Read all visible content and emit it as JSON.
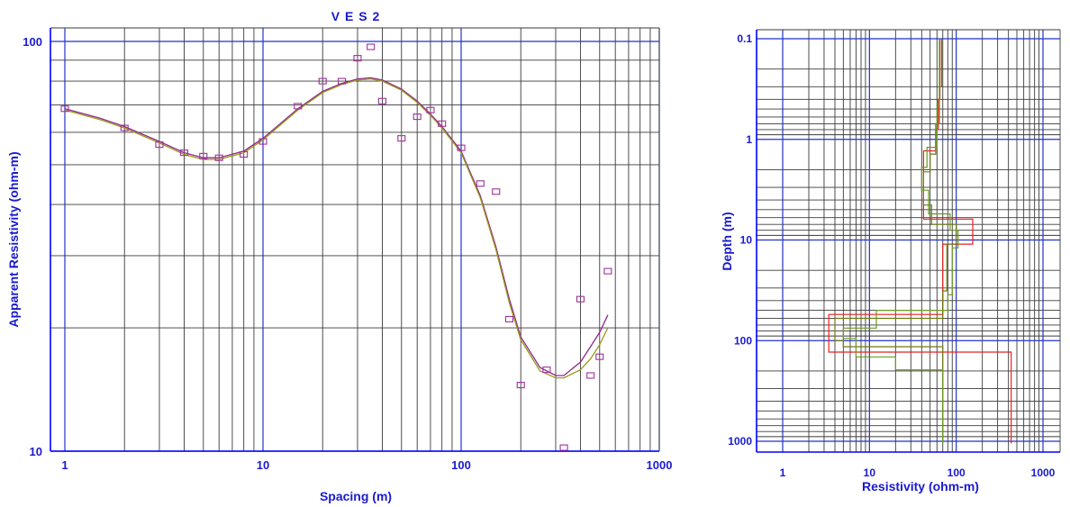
{
  "colors": {
    "frame": "#0000ff",
    "grid_decade": "#2233cc",
    "grid_minor": "#3a3a3a",
    "text": "#1a1ad0",
    "marker": "#a0309a",
    "curve_a": "#8e2a8a",
    "curve_b": "#9a9a1a",
    "model_red": "#e82020",
    "model_olive": "#6e7a10",
    "model_green": "#6a9a20"
  },
  "chart_data": [
    {
      "type": "scatter",
      "title": "V E S  2",
      "xlabel": "Spacing  (m)",
      "ylabel": "Apparent Resistivity  (ohm-m)",
      "xscale": "log",
      "yscale": "log",
      "xlim": [
        1,
        1000
      ],
      "ylim": [
        10,
        100
      ],
      "grid": true,
      "x_ticks": [
        {
          "value": 1,
          "label": "1"
        },
        {
          "value": 10,
          "label": "10"
        },
        {
          "value": 100,
          "label": "100"
        },
        {
          "value": 1000,
          "label": "1000"
        }
      ],
      "y_ticks": [
        {
          "value": 10,
          "label": "10"
        },
        {
          "value": 100,
          "label": "100"
        }
      ],
      "observed": [
        {
          "x": 1,
          "y": 68.5
        },
        {
          "x": 2,
          "y": 61.5
        },
        {
          "x": 3,
          "y": 56.0
        },
        {
          "x": 4,
          "y": 53.5
        },
        {
          "x": 5,
          "y": 52.5
        },
        {
          "x": 6,
          "y": 52.0
        },
        {
          "x": 8,
          "y": 53.0
        },
        {
          "x": 10,
          "y": 57.0
        },
        {
          "x": 15,
          "y": 69.5
        },
        {
          "x": 20,
          "y": 80.0
        },
        {
          "x": 25,
          "y": 80.0
        },
        {
          "x": 30,
          "y": 91.0
        },
        {
          "x": 35,
          "y": 97.0
        },
        {
          "x": 40,
          "y": 71.5
        },
        {
          "x": 50,
          "y": 58.0
        },
        {
          "x": 60,
          "y": 65.5
        },
        {
          "x": 70,
          "y": 68.0
        },
        {
          "x": 80,
          "y": 63.0
        },
        {
          "x": 100,
          "y": 55.0
        },
        {
          "x": 125,
          "y": 45.0
        },
        {
          "x": 150,
          "y": 43.0
        },
        {
          "x": 175,
          "y": 21.0
        },
        {
          "x": 200,
          "y": 14.5
        },
        {
          "x": 270,
          "y": 15.8
        },
        {
          "x": 330,
          "y": 10.2
        },
        {
          "x": 400,
          "y": 23.5
        },
        {
          "x": 450,
          "y": 15.3
        },
        {
          "x": 500,
          "y": 17.0
        },
        {
          "x": 550,
          "y": 27.5
        }
      ],
      "series": [
        {
          "x": [
            1,
            1.5,
            2,
            3,
            4,
            5,
            6,
            8,
            10,
            15,
            20,
            25,
            30,
            35,
            40,
            50,
            60,
            70,
            80,
            100,
            125,
            150,
            175,
            200,
            250,
            300,
            330,
            400,
            450,
            500,
            550
          ],
          "y": [
            68.5,
            65.0,
            62.0,
            57.0,
            53.5,
            52.0,
            52.0,
            54.0,
            58.0,
            68.5,
            75.5,
            79.0,
            81.0,
            81.5,
            80.5,
            76.5,
            71.5,
            66.5,
            62.0,
            54.0,
            42.0,
            31.5,
            23.5,
            19.0,
            16.0,
            15.3,
            15.3,
            16.5,
            18.0,
            19.5,
            21.5
          ]
        },
        {
          "x": [
            1,
            1.5,
            2,
            3,
            4,
            5,
            6,
            8,
            10,
            15,
            20,
            25,
            30,
            35,
            40,
            50,
            60,
            70,
            80,
            100,
            125,
            150,
            175,
            200,
            250,
            300,
            330,
            400,
            450,
            500,
            550
          ],
          "y": [
            68.0,
            64.5,
            61.5,
            56.5,
            53.0,
            51.5,
            51.5,
            53.5,
            57.5,
            68.0,
            75.0,
            78.5,
            80.5,
            81.0,
            80.0,
            76.0,
            71.0,
            66.0,
            61.5,
            53.5,
            41.5,
            31.0,
            23.0,
            18.7,
            15.7,
            15.1,
            15.1,
            15.8,
            16.8,
            18.2,
            20.0
          ]
        }
      ]
    },
    {
      "type": "line",
      "xlabel": "Resistivity  (ohm-m)",
      "ylabel": "Depth  (m)",
      "xscale": "log",
      "yscale": "log",
      "y_inverted": true,
      "xlim": [
        1,
        1500
      ],
      "ylim": [
        0.1,
        1100
      ],
      "grid": true,
      "x_ticks": [
        {
          "value": 1,
          "label": "1"
        },
        {
          "value": 10,
          "label": "10"
        },
        {
          "value": 100,
          "label": "100"
        },
        {
          "value": 1000,
          "label": "1000"
        }
      ],
      "y_ticks": [
        {
          "value": 0.1,
          "label": "0.1"
        },
        {
          "value": 1,
          "label": "1"
        },
        {
          "value": 10,
          "label": "10"
        },
        {
          "value": 100,
          "label": "100"
        },
        {
          "value": 1000,
          "label": "1000"
        }
      ],
      "models": [
        {
          "color_key": "model_red",
          "steps": [
            {
              "res": 65,
              "depth": 0.4
            },
            {
              "res": 62,
              "depth": 0.8
            },
            {
              "res": 58,
              "depth": 1.3
            },
            {
              "res": 42,
              "depth": 6.2
            },
            {
              "res": 155,
              "depth": 11
            },
            {
              "res": 70,
              "depth": 55
            },
            {
              "res": 3.4,
              "depth": 130
            },
            {
              "res": 430,
              "depth": 1050
            }
          ]
        },
        {
          "color_key": "model_olive",
          "steps": [
            {
              "res": 68,
              "depth": 0.3
            },
            {
              "res": 64,
              "depth": 0.7
            },
            {
              "res": 58,
              "depth": 1.4
            },
            {
              "res": 50,
              "depth": 2.1
            },
            {
              "res": 42,
              "depth": 4.5
            },
            {
              "res": 52,
              "depth": 7
            },
            {
              "res": 100,
              "depth": 11
            },
            {
              "res": 78,
              "depth": 32
            },
            {
              "res": 70,
              "depth": 60
            },
            {
              "res": 4,
              "depth": 100
            },
            {
              "res": 5,
              "depth": 115
            },
            {
              "res": 70,
              "depth": 1050
            }
          ]
        },
        {
          "color_key": "model_green",
          "steps": [
            {
              "res": 64,
              "depth": 0.45
            },
            {
              "res": 60,
              "depth": 1.2
            },
            {
              "res": 46,
              "depth": 1.9
            },
            {
              "res": 40,
              "depth": 3.2
            },
            {
              "res": 48,
              "depth": 5.5
            },
            {
              "res": 85,
              "depth": 8
            },
            {
              "res": 105,
              "depth": 12
            },
            {
              "res": 90,
              "depth": 35
            },
            {
              "res": 80,
              "depth": 50
            },
            {
              "res": 12,
              "depth": 75
            },
            {
              "res": 5,
              "depth": 95
            },
            {
              "res": 7,
              "depth": 145
            },
            {
              "res": 20,
              "depth": 195
            },
            {
              "res": 70,
              "depth": 1050
            }
          ]
        }
      ]
    }
  ]
}
